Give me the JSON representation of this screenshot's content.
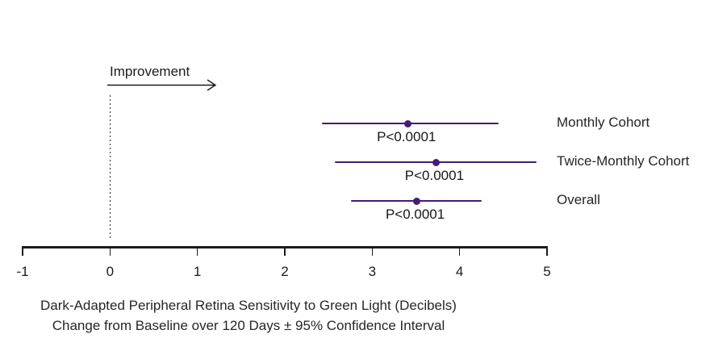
{
  "chart_data": {
    "type": "forest",
    "annotation": "Improvement",
    "title_lines": [
      "Dark-Adapted Peripheral Retina Sensitivity to Green Light (Decibels)",
      "Change from Baseline over 120 Days ± 95% Confidence Interval"
    ],
    "xlim": [
      -1,
      5
    ],
    "x_ticks": [
      -1,
      0,
      1,
      2,
      3,
      4,
      5
    ],
    "reference_line_x": 0,
    "series": [
      {
        "label": "Monthly Cohort",
        "mean": 3.41,
        "ci_low": 2.42,
        "ci_high": 4.45,
        "p_value": "P<0.0001"
      },
      {
        "label": "Twice-Monthly Cohort",
        "mean": 3.73,
        "ci_low": 2.57,
        "ci_high": 4.88,
        "p_value": "P<0.0001"
      },
      {
        "label": "Overall",
        "mean": 3.51,
        "ci_low": 2.76,
        "ci_high": 4.25,
        "p_value": "P<0.0001"
      }
    ],
    "colors": {
      "ci": "#431c76",
      "axis": "#1c1c1c",
      "text": "#262626"
    },
    "legend_position": "right",
    "grid": false
  }
}
